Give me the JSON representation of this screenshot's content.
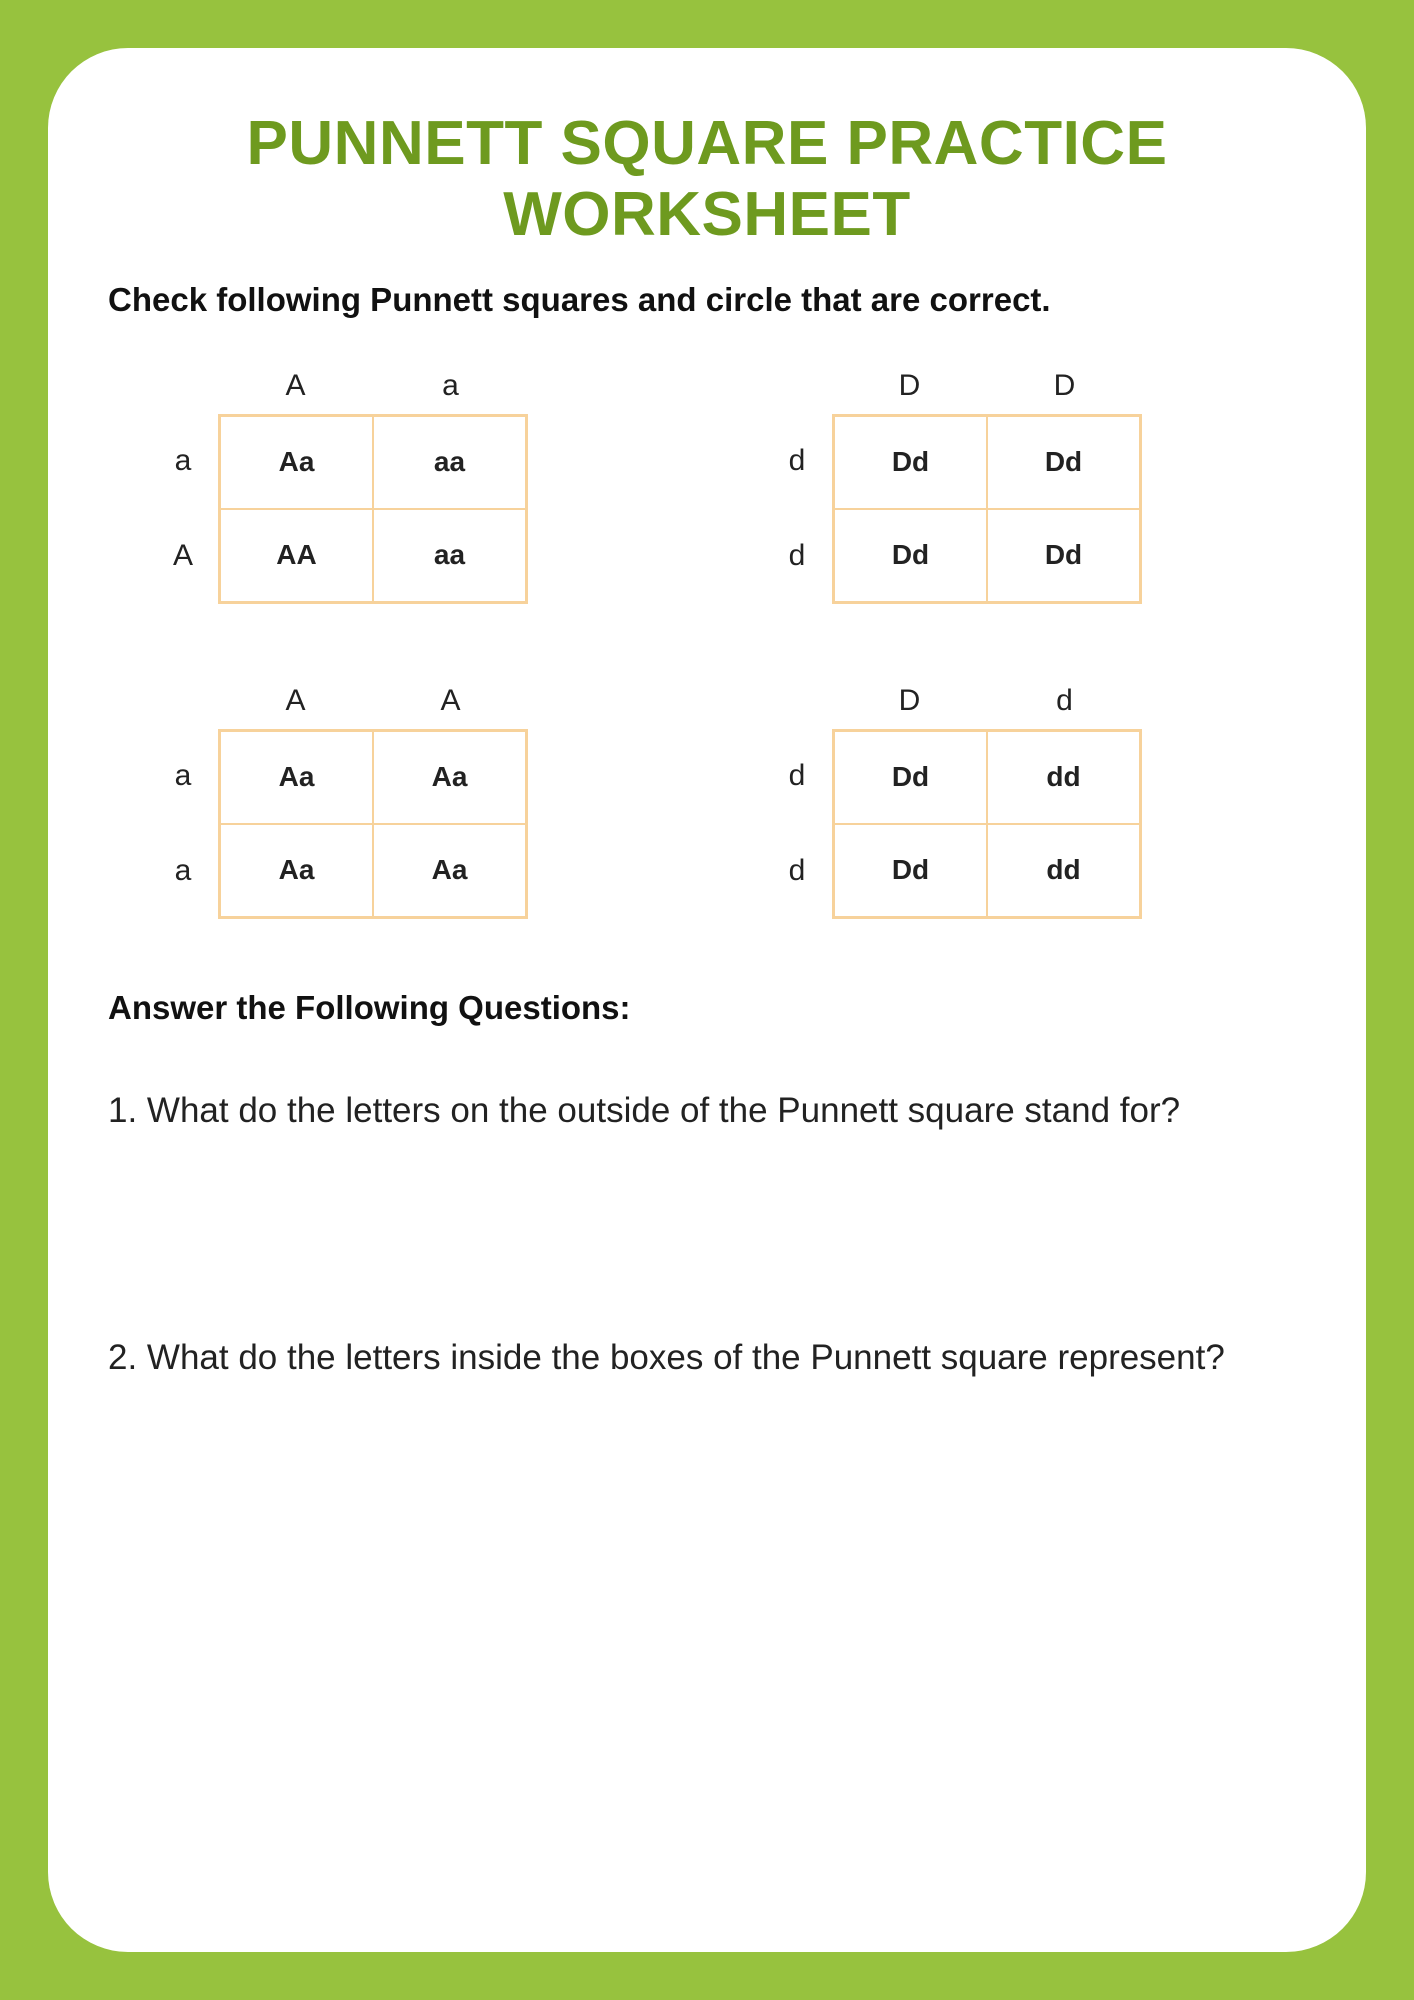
{
  "colors": {
    "page_green": "#97c23e",
    "title_green": "#6e9a1f",
    "punnett_border": "#f7d29b",
    "text": "#222222",
    "white": "#ffffff"
  },
  "title": "PUNNETT SQUARE PRACTICE WORKSHEET",
  "instruction": "Check following Punnett squares and circle that are correct.",
  "punnetts": [
    {
      "top": [
        "A",
        "a"
      ],
      "left": [
        "a",
        "A"
      ],
      "cells": [
        [
          "Aa",
          "aa"
        ],
        [
          "AA",
          "aa"
        ]
      ]
    },
    {
      "top": [
        "D",
        "D"
      ],
      "left": [
        "d",
        "d"
      ],
      "cells": [
        [
          "Dd",
          "Dd"
        ],
        [
          "Dd",
          "Dd"
        ]
      ]
    },
    {
      "top": [
        "A",
        "A"
      ],
      "left": [
        "a",
        "a"
      ],
      "cells": [
        [
          "Aa",
          "Aa"
        ],
        [
          "Aa",
          "Aa"
        ]
      ]
    },
    {
      "top": [
        "D",
        "d"
      ],
      "left": [
        "d",
        "d"
      ],
      "cells": [
        [
          "Dd",
          "dd"
        ],
        [
          "Dd",
          "dd"
        ]
      ]
    }
  ],
  "section_heading": "Answer the Following Questions:",
  "questions": [
    "1. What do the letters on the outside of the Punnett square stand for?",
    "2. What do the letters inside the boxes of the Punnett square represent?"
  ]
}
